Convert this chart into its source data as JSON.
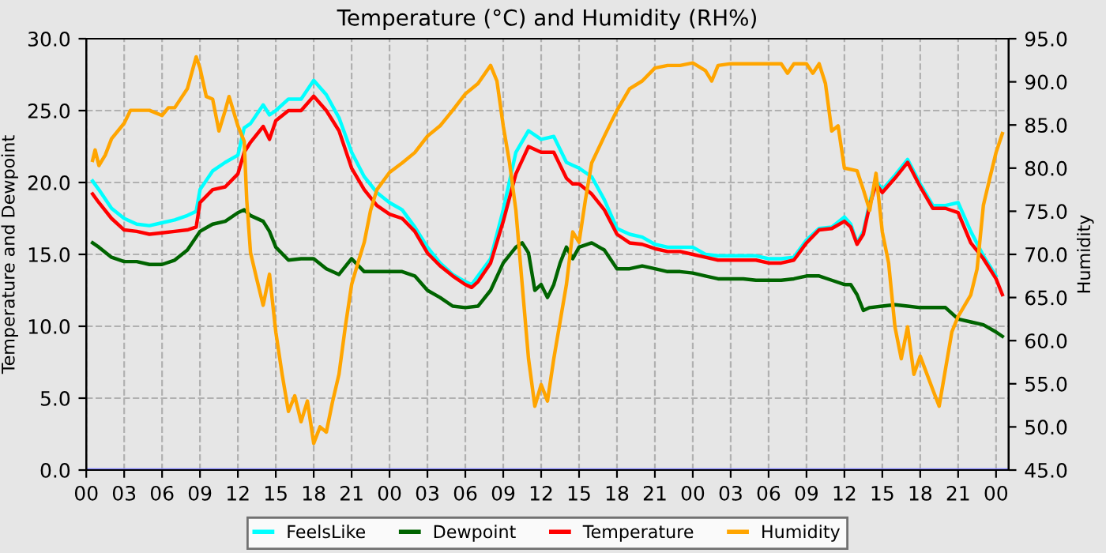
{
  "chart_data": {
    "type": "line",
    "title": "Temperature (°C) and Humidity (RH%)",
    "ylabel": "Temperature and Dewpoint",
    "y2label": "Humidity",
    "xlim": [
      0,
      73
    ],
    "xticks": [
      {
        "value": 0,
        "label": "00"
      },
      {
        "value": 3,
        "label": "03"
      },
      {
        "value": 6,
        "label": "06"
      },
      {
        "value": 9,
        "label": "09"
      },
      {
        "value": 12,
        "label": "12"
      },
      {
        "value": 15,
        "label": "15"
      },
      {
        "value": 18,
        "label": "18"
      },
      {
        "value": 21,
        "label": "21"
      },
      {
        "value": 24,
        "label": "00"
      },
      {
        "value": 27,
        "label": "03"
      },
      {
        "value": 30,
        "label": "06"
      },
      {
        "value": 33,
        "label": "09"
      },
      {
        "value": 36,
        "label": "12"
      },
      {
        "value": 39,
        "label": "15"
      },
      {
        "value": 42,
        "label": "18"
      },
      {
        "value": 45,
        "label": "21"
      },
      {
        "value": 48,
        "label": "00"
      },
      {
        "value": 51,
        "label": "03"
      },
      {
        "value": 54,
        "label": "06"
      },
      {
        "value": 57,
        "label": "09"
      },
      {
        "value": 60,
        "label": "12"
      },
      {
        "value": 63,
        "label": "15"
      },
      {
        "value": 66,
        "label": "18"
      },
      {
        "value": 69,
        "label": "21"
      },
      {
        "value": 72,
        "label": "00"
      }
    ],
    "ylim": [
      0,
      30
    ],
    "yticks": [
      {
        "value": 0,
        "label": "0.0"
      },
      {
        "value": 5,
        "label": "5.0"
      },
      {
        "value": 10,
        "label": "10.0"
      },
      {
        "value": 15,
        "label": "15.0"
      },
      {
        "value": 20,
        "label": "20.0"
      },
      {
        "value": 25,
        "label": "25.0"
      },
      {
        "value": 30,
        "label": "30.0"
      }
    ],
    "y2lim": [
      45,
      95
    ],
    "y2ticks": [
      {
        "value": 45,
        "label": "45.0"
      },
      {
        "value": 50,
        "label": "50.0"
      },
      {
        "value": 55,
        "label": "55.0"
      },
      {
        "value": 60,
        "label": "60.0"
      },
      {
        "value": 65,
        "label": "65.0"
      },
      {
        "value": 70,
        "label": "70.0"
      },
      {
        "value": 75,
        "label": "75.0"
      },
      {
        "value": 80,
        "label": "80.0"
      },
      {
        "value": 85,
        "label": "85.0"
      },
      {
        "value": 90,
        "label": "90.0"
      },
      {
        "value": 95,
        "label": "95.0"
      }
    ],
    "grid": true,
    "legend": "bottom",
    "line_style": "solid",
    "series": [
      {
        "name": "FeelsLike",
        "color": "#00ffff",
        "x": [
          0.5,
          1,
          2,
          3,
          4,
          5,
          6,
          7,
          8,
          8.7,
          9,
          10,
          11,
          12,
          12.5,
          13,
          14,
          14.5,
          15,
          16,
          17,
          18,
          19,
          20,
          21,
          22,
          23,
          24,
          25,
          26,
          27,
          28,
          29,
          30,
          30.5,
          31,
          32,
          33,
          34,
          35,
          36,
          37,
          38,
          38.5,
          39,
          40,
          41,
          42,
          43,
          44,
          45,
          46,
          47,
          48,
          49,
          50,
          51,
          52,
          53,
          54,
          55,
          56,
          57,
          58,
          59,
          60,
          60.5,
          61,
          61.5,
          62,
          62.5,
          63,
          64,
          65,
          66,
          67,
          68,
          69,
          70,
          71,
          72
        ],
        "values": [
          20.1,
          19.5,
          18.2,
          17.5,
          17.1,
          17.0,
          17.2,
          17.4,
          17.7,
          18.0,
          19.5,
          20.8,
          21.4,
          21.9,
          23.8,
          24.1,
          25.4,
          24.7,
          25.0,
          25.8,
          25.8,
          27.1,
          26.1,
          24.5,
          22.1,
          20.4,
          19.3,
          18.6,
          18.1,
          16.9,
          15.5,
          14.4,
          13.6,
          13.1,
          12.9,
          13.5,
          14.7,
          18.1,
          22.1,
          23.6,
          23.0,
          23.2,
          21.4,
          21.2,
          21.0,
          20.4,
          18.8,
          16.8,
          16.4,
          16.2,
          15.7,
          15.5,
          15.5,
          15.5,
          15.0,
          14.9,
          14.9,
          14.9,
          14.9,
          14.7,
          14.7,
          14.8,
          16.0,
          16.8,
          16.9,
          17.6,
          17.1,
          15.8,
          16.6,
          18.6,
          20.1,
          19.5,
          20.5,
          21.6,
          19.9,
          18.4,
          18.4,
          18.6,
          16.6,
          14.9,
          13.5
        ]
      },
      {
        "name": "Dewpoint",
        "color": "#006400",
        "x": [
          0.5,
          1,
          2,
          3,
          4,
          5,
          6,
          7,
          8,
          9,
          10,
          11,
          12,
          12.5,
          13,
          14,
          14.5,
          15,
          16,
          17,
          18,
          19,
          20,
          21,
          22,
          23,
          24,
          25,
          26,
          27,
          28,
          29,
          30,
          31,
          32,
          33,
          34,
          34.5,
          35,
          35.5,
          36,
          36.5,
          37,
          37.5,
          38,
          38.5,
          39,
          40,
          41,
          42,
          43,
          44,
          45,
          46,
          47,
          48,
          49,
          50,
          51,
          52,
          53,
          54,
          55,
          56,
          57,
          58,
          59,
          60,
          60.5,
          61,
          61.5,
          62,
          63,
          64,
          65,
          66,
          67,
          68,
          69,
          70,
          71,
          72,
          72.5
        ],
        "values": [
          15.8,
          15.5,
          14.8,
          14.5,
          14.5,
          14.3,
          14.3,
          14.6,
          15.3,
          16.6,
          17.1,
          17.3,
          17.9,
          18.1,
          17.7,
          17.3,
          16.6,
          15.5,
          14.6,
          14.7,
          14.7,
          14.0,
          13.6,
          14.7,
          13.8,
          13.8,
          13.8,
          13.8,
          13.5,
          12.5,
          12.0,
          11.4,
          11.3,
          11.4,
          12.5,
          14.4,
          15.5,
          15.8,
          15.1,
          12.5,
          12.9,
          12.0,
          12.9,
          14.4,
          15.5,
          14.7,
          15.5,
          15.8,
          15.3,
          14.0,
          14.0,
          14.2,
          14.0,
          13.8,
          13.8,
          13.7,
          13.5,
          13.3,
          13.3,
          13.3,
          13.2,
          13.2,
          13.2,
          13.3,
          13.5,
          13.5,
          13.2,
          12.9,
          12.9,
          12.2,
          11.1,
          11.3,
          11.4,
          11.5,
          11.4,
          11.3,
          11.3,
          11.3,
          10.5,
          10.3,
          10.1,
          9.6,
          9.3
        ]
      },
      {
        "name": "Temperature",
        "color": "#ff0000",
        "x": [
          0.5,
          1,
          2,
          3,
          4,
          5,
          6,
          7,
          8,
          8.7,
          9,
          10,
          11,
          12,
          12.5,
          13,
          14,
          14.5,
          15,
          16,
          17,
          18,
          19,
          20,
          21,
          22,
          23,
          24,
          25,
          26,
          27,
          28,
          29,
          30,
          30.5,
          31,
          32,
          33,
          34,
          35,
          36,
          37,
          38,
          38.5,
          39,
          40,
          41,
          42,
          43,
          44,
          45,
          46,
          47,
          48,
          49,
          50,
          51,
          52,
          53,
          54,
          55,
          56,
          57,
          58,
          59,
          60,
          60.5,
          61,
          61.5,
          62,
          62.5,
          63,
          64,
          65,
          66,
          67,
          68,
          69,
          70,
          71,
          72,
          72.5
        ],
        "values": [
          19.2,
          18.6,
          17.5,
          16.7,
          16.6,
          16.4,
          16.5,
          16.6,
          16.7,
          16.9,
          18.6,
          19.5,
          19.7,
          20.6,
          22.1,
          22.8,
          23.9,
          23.0,
          24.3,
          25.0,
          25.0,
          26.0,
          25.0,
          23.6,
          21.0,
          19.5,
          18.4,
          17.8,
          17.5,
          16.6,
          15.1,
          14.2,
          13.5,
          12.9,
          12.7,
          13.1,
          14.4,
          17.3,
          20.6,
          22.5,
          22.1,
          22.1,
          20.3,
          19.9,
          19.9,
          19.2,
          18.1,
          16.4,
          15.8,
          15.7,
          15.4,
          15.2,
          15.2,
          15.0,
          14.8,
          14.6,
          14.6,
          14.6,
          14.6,
          14.4,
          14.4,
          14.6,
          15.8,
          16.7,
          16.8,
          17.3,
          16.9,
          15.7,
          16.4,
          18.4,
          19.9,
          19.3,
          20.3,
          21.4,
          19.7,
          18.2,
          18.2,
          17.9,
          15.8,
          14.7,
          13.3,
          12.2
        ]
      },
      {
        "name": "Humidity",
        "color": "#ffa500",
        "axis": "y2",
        "x": [
          0.5,
          0.7,
          1,
          1.5,
          2,
          3,
          3.5,
          4,
          5,
          6,
          6.5,
          7,
          8,
          8.7,
          9,
          9.5,
          10,
          10.5,
          11,
          11.3,
          12,
          12.5,
          12.7,
          13,
          13.5,
          14,
          14.5,
          15,
          15.5,
          16,
          16.5,
          17,
          17.5,
          18,
          18.5,
          19,
          19.5,
          20,
          20.5,
          21,
          21.5,
          22,
          22.5,
          23,
          24,
          25,
          26,
          27,
          28,
          29,
          30,
          31,
          32,
          32.5,
          33,
          33.5,
          34,
          34.5,
          35,
          35.5,
          36,
          36.5,
          37,
          38,
          38.5,
          39,
          39.5,
          40,
          41,
          42,
          43,
          44,
          45,
          46,
          47,
          48,
          49,
          49.5,
          50,
          51,
          52,
          53,
          54,
          55,
          55.5,
          56,
          57,
          57.5,
          58,
          58.5,
          59,
          59.5,
          60,
          61,
          61.5,
          62,
          62.5,
          63,
          63.5,
          64,
          64.5,
          65,
          65.5,
          66,
          67,
          67.5,
          68,
          68.5,
          69,
          70,
          70.5,
          71,
          71.5,
          72,
          72.5
        ],
        "values": [
          80.9,
          82.1,
          80.3,
          81.5,
          83.4,
          85.2,
          86.7,
          86.7,
          86.7,
          86.1,
          87.0,
          87.0,
          89.2,
          92.9,
          91.6,
          88.3,
          88.0,
          84.3,
          86.7,
          88.3,
          84.9,
          83.1,
          76.3,
          70.2,
          67.1,
          64.1,
          67.7,
          61.0,
          56.1,
          51.8,
          53.6,
          50.6,
          53.0,
          48.1,
          50.0,
          49.4,
          53.0,
          56.1,
          61.6,
          66.5,
          69.0,
          71.4,
          75.1,
          77.5,
          79.5,
          80.6,
          81.8,
          83.7,
          84.9,
          86.7,
          88.6,
          89.8,
          91.9,
          90.1,
          84.9,
          80.6,
          75.1,
          66.5,
          57.9,
          52.4,
          54.9,
          53.0,
          57.9,
          66.5,
          72.6,
          71.4,
          76.3,
          80.6,
          83.7,
          86.7,
          89.2,
          90.1,
          91.6,
          91.9,
          91.9,
          92.2,
          91.3,
          90.1,
          91.9,
          92.1,
          92.1,
          92.1,
          92.1,
          92.1,
          91.0,
          92.1,
          92.1,
          91.0,
          92.1,
          89.8,
          84.3,
          84.9,
          80.0,
          79.7,
          77.5,
          75.1,
          79.4,
          72.6,
          69.0,
          61.6,
          57.9,
          61.6,
          56.1,
          58.2,
          54.3,
          52.4,
          56.7,
          61.0,
          62.8,
          65.3,
          68.3,
          75.7,
          78.8,
          81.8,
          84.0
        ]
      },
      {
        "color": "#8080ff",
        "x": [
          0,
          73
        ],
        "values": [
          0,
          0
        ]
      }
    ]
  }
}
